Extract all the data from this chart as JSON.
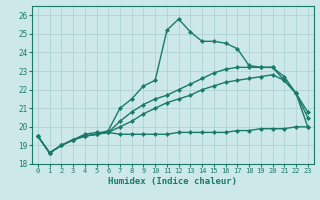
{
  "xlabel": "Humidex (Indice chaleur)",
  "ylabel": "",
  "xlim": [
    -0.5,
    23.5
  ],
  "ylim": [
    18,
    26.5
  ],
  "yticks": [
    18,
    19,
    20,
    21,
    22,
    23,
    24,
    25,
    26
  ],
  "xticks": [
    0,
    1,
    2,
    3,
    4,
    5,
    6,
    7,
    8,
    9,
    10,
    11,
    12,
    13,
    14,
    15,
    16,
    17,
    18,
    19,
    20,
    21,
    22,
    23
  ],
  "background_color": "#cce8e8",
  "grid_color": "#aacece",
  "line_color": "#1a7a6a",
  "lines": [
    {
      "x": [
        0,
        1,
        2,
        3,
        4,
        5,
        6,
        7,
        8,
        9,
        10,
        11,
        12,
        13,
        14,
        15,
        16,
        17,
        18,
        19,
        20,
        21,
        22,
        23
      ],
      "y": [
        19.5,
        18.6,
        19.0,
        19.3,
        19.6,
        19.7,
        19.7,
        19.6,
        19.6,
        19.6,
        19.6,
        19.6,
        19.7,
        19.7,
        19.7,
        19.7,
        19.7,
        19.8,
        19.8,
        19.9,
        19.9,
        19.9,
        20.0,
        20.0
      ],
      "marker": "D",
      "markersize": 2.0,
      "linewidth": 1.0
    },
    {
      "x": [
        0,
        1,
        2,
        3,
        4,
        5,
        6,
        7,
        8,
        9,
        10,
        11,
        12,
        13,
        14,
        15,
        16,
        17,
        18,
        19,
        20,
        21,
        22,
        23
      ],
      "y": [
        19.5,
        18.6,
        19.0,
        19.3,
        19.5,
        19.6,
        19.7,
        20.0,
        20.3,
        20.7,
        21.0,
        21.3,
        21.5,
        21.7,
        22.0,
        22.2,
        22.4,
        22.5,
        22.6,
        22.7,
        22.8,
        22.5,
        21.8,
        20.8
      ],
      "marker": "D",
      "markersize": 2.0,
      "linewidth": 1.0
    },
    {
      "x": [
        0,
        1,
        2,
        3,
        4,
        5,
        6,
        7,
        8,
        9,
        10,
        11,
        12,
        13,
        14,
        15,
        16,
        17,
        18,
        19,
        20,
        21,
        22,
        23
      ],
      "y": [
        19.5,
        18.6,
        19.0,
        19.3,
        19.5,
        19.6,
        19.7,
        20.3,
        20.8,
        21.2,
        21.5,
        21.7,
        22.0,
        22.3,
        22.6,
        22.9,
        23.1,
        23.2,
        23.2,
        23.2,
        23.2,
        22.7,
        21.8,
        20.5
      ],
      "marker": "D",
      "markersize": 2.0,
      "linewidth": 1.0
    },
    {
      "x": [
        0,
        1,
        2,
        3,
        4,
        5,
        6,
        7,
        8,
        9,
        10,
        11,
        12,
        13,
        14,
        15,
        16,
        17,
        18,
        19,
        20,
        21,
        22,
        23
      ],
      "y": [
        19.5,
        18.6,
        19.0,
        19.3,
        19.5,
        19.6,
        19.8,
        21.0,
        21.5,
        22.2,
        22.5,
        25.2,
        25.8,
        25.1,
        24.6,
        24.6,
        24.5,
        24.2,
        23.3,
        23.2,
        23.2,
        22.5,
        21.8,
        20.0
      ],
      "marker": "D",
      "markersize": 2.0,
      "linewidth": 1.0
    }
  ]
}
